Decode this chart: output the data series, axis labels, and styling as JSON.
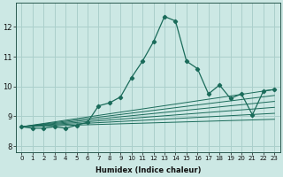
{
  "title": "",
  "xlabel": "Humidex (Indice chaleur)",
  "ylabel": "",
  "background_color": "#cce8e4",
  "grid_color": "#aacfcb",
  "line_color": "#1a6b5a",
  "xlim": [
    -0.5,
    23.5
  ],
  "ylim": [
    7.8,
    12.8
  ],
  "xticks": [
    0,
    1,
    2,
    3,
    4,
    5,
    6,
    7,
    8,
    9,
    10,
    11,
    12,
    13,
    14,
    15,
    16,
    17,
    18,
    19,
    20,
    21,
    22,
    23
  ],
  "yticks": [
    8,
    9,
    10,
    11,
    12
  ],
  "main_x": [
    0,
    1,
    2,
    3,
    4,
    5,
    6,
    7,
    8,
    9,
    10,
    11,
    12,
    13,
    14,
    15,
    16,
    17,
    18,
    19,
    20,
    21,
    22,
    23
  ],
  "main_y": [
    8.65,
    8.6,
    8.6,
    8.65,
    8.6,
    8.7,
    8.8,
    9.35,
    9.45,
    9.65,
    10.3,
    10.85,
    11.5,
    12.35,
    12.2,
    10.85,
    10.6,
    9.75,
    10.05,
    9.6,
    9.75,
    9.05,
    9.85,
    9.9
  ],
  "band_lines_y_end": [
    9.9,
    9.7,
    9.5,
    9.3,
    9.1,
    8.9
  ]
}
